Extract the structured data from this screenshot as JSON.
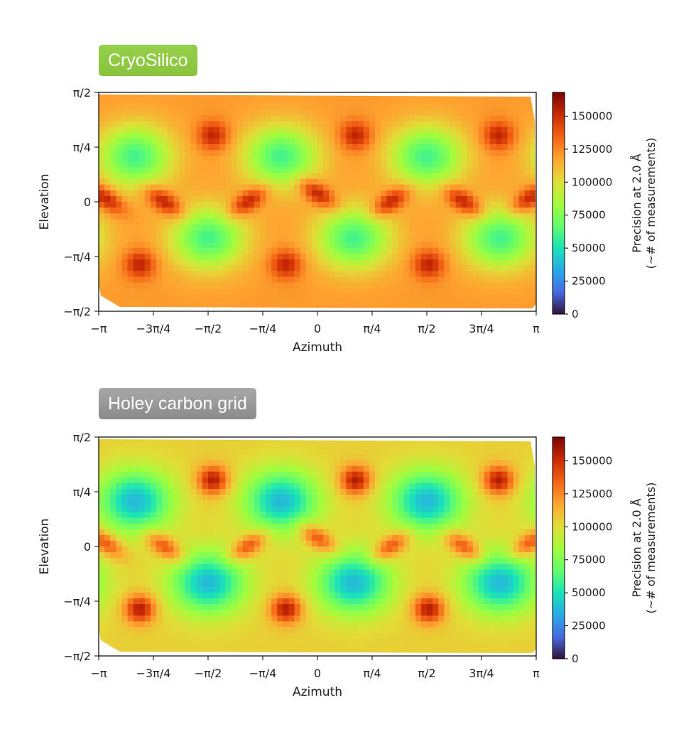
{
  "colors": {
    "badge_top": "#8ac43f",
    "badge_bottom": "#8a8a8a"
  },
  "chart_data": [
    {
      "type": "heatmap",
      "title": "CryoSilico",
      "xlabel": "Azimuth",
      "ylabel": "Elevation",
      "colorbar_label": [
        "Precision at 2.0 Å",
        "(~# of measurements)"
      ],
      "xlim": [
        -3.1416,
        3.1416
      ],
      "ylim": [
        -1.5708,
        1.5708
      ],
      "xticks": [
        "−π",
        "−3π/4",
        "−π/2",
        "−π/4",
        "0",
        "π/4",
        "π/2",
        "3π/4",
        "π"
      ],
      "yticks": [
        "π/2",
        "π/4",
        "0",
        "−π/4",
        "−π/2"
      ],
      "colorbar_ticks": [
        "150000",
        "125000",
        "100000",
        "75000",
        "50000",
        "25000",
        "0"
      ],
      "colorbar_range": [
        0,
        168000
      ],
      "colormap": "turbo",
      "background_value": 120000,
      "minima": [
        {
          "x": -2.62,
          "y": 0.65,
          "value": 60000
        },
        {
          "x": -0.52,
          "y": 0.65,
          "value": 60000
        },
        {
          "x": 1.57,
          "y": 0.65,
          "value": 60000
        },
        {
          "x": -1.57,
          "y": -0.52,
          "value": 60000
        },
        {
          "x": 0.52,
          "y": -0.52,
          "value": 60000
        },
        {
          "x": 2.62,
          "y": -0.52,
          "value": 60000
        }
      ],
      "maxima": [
        {
          "x": -1.5,
          "y": 0.95,
          "value": 155000
        },
        {
          "x": 0.55,
          "y": 0.95,
          "value": 155000
        },
        {
          "x": 2.6,
          "y": 0.95,
          "value": 155000
        },
        {
          "x": -2.55,
          "y": -0.9,
          "value": 155000
        },
        {
          "x": -0.45,
          "y": -0.9,
          "value": 155000
        },
        {
          "x": 1.6,
          "y": -0.9,
          "value": 155000
        }
      ]
    },
    {
      "type": "heatmap",
      "title": "Holey carbon grid",
      "xlabel": "Azimuth",
      "ylabel": "Elevation",
      "colorbar_label": [
        "Precision at 2.0 Å",
        "(~# of measurements)"
      ],
      "xlim": [
        -3.1416,
        3.1416
      ],
      "ylim": [
        -1.5708,
        1.5708
      ],
      "xticks": [
        "−π",
        "−3π/4",
        "−π/2",
        "−π/4",
        "0",
        "π/4",
        "π/2",
        "3π/4",
        "π"
      ],
      "yticks": [
        "π/2",
        "π/4",
        "0",
        "−π/4",
        "−π/2"
      ],
      "colorbar_ticks": [
        "150000",
        "125000",
        "100000",
        "75000",
        "50000",
        "25000",
        "0"
      ],
      "colorbar_range": [
        0,
        168000
      ],
      "colormap": "turbo",
      "background_value": 105000,
      "minima": [
        {
          "x": -2.62,
          "y": 0.65,
          "value": 38000
        },
        {
          "x": -0.52,
          "y": 0.65,
          "value": 38000
        },
        {
          "x": 1.57,
          "y": 0.65,
          "value": 38000
        },
        {
          "x": -1.57,
          "y": -0.52,
          "value": 38000
        },
        {
          "x": 0.52,
          "y": -0.52,
          "value": 38000
        },
        {
          "x": 2.62,
          "y": -0.52,
          "value": 38000
        }
      ],
      "maxima": [
        {
          "x": -1.5,
          "y": 0.95,
          "value": 158000
        },
        {
          "x": 0.55,
          "y": 0.95,
          "value": 158000
        },
        {
          "x": 2.6,
          "y": 0.95,
          "value": 158000
        },
        {
          "x": -2.55,
          "y": -0.9,
          "value": 158000
        },
        {
          "x": -0.45,
          "y": -0.9,
          "value": 158000
        },
        {
          "x": 1.6,
          "y": -0.9,
          "value": 158000
        }
      ]
    }
  ]
}
